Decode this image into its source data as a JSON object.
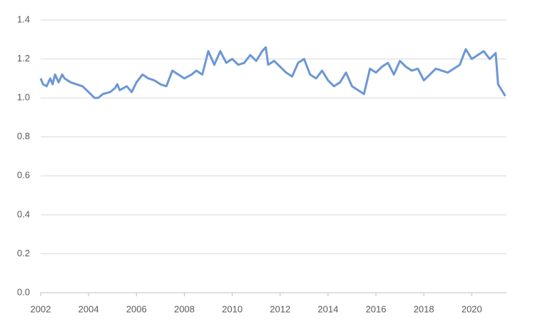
{
  "chart_data": {
    "type": "line",
    "x": [
      2002.0,
      2002.1,
      2002.25,
      2002.4,
      2002.5,
      2002.6,
      2002.75,
      2002.9,
      2003.0,
      2003.25,
      2003.5,
      2003.75,
      2004.0,
      2004.25,
      2004.4,
      2004.6,
      2004.9,
      2005.1,
      2005.2,
      2005.3,
      2005.6,
      2005.8,
      2006.0,
      2006.25,
      2006.5,
      2006.75,
      2007.0,
      2007.25,
      2007.5,
      2007.75,
      2008.0,
      2008.3,
      2008.5,
      2008.75,
      2009.0,
      2009.25,
      2009.5,
      2009.75,
      2010.0,
      2010.25,
      2010.5,
      2010.75,
      2011.0,
      2011.25,
      2011.4,
      2011.5,
      2011.75,
      2012.0,
      2012.25,
      2012.5,
      2012.75,
      2013.0,
      2013.25,
      2013.5,
      2013.75,
      2014.0,
      2014.25,
      2014.5,
      2014.75,
      2015.0,
      2015.25,
      2015.5,
      2015.75,
      2016.0,
      2016.25,
      2016.5,
      2016.75,
      2017.0,
      2017.25,
      2017.5,
      2017.75,
      2018.0,
      2018.25,
      2018.5,
      2018.75,
      2019.0,
      2019.25,
      2019.5,
      2019.75,
      2020.0,
      2020.25,
      2020.5,
      2020.75,
      2021.0,
      2021.1,
      2021.25,
      2021.4
    ],
    "series": [
      {
        "color": "#6b97d6",
        "values": [
          1.1,
          1.07,
          1.06,
          1.1,
          1.07,
          1.12,
          1.08,
          1.12,
          1.1,
          1.08,
          1.07,
          1.06,
          1.03,
          1.0,
          1.0,
          1.02,
          1.03,
          1.05,
          1.07,
          1.04,
          1.06,
          1.03,
          1.08,
          1.12,
          1.1,
          1.09,
          1.07,
          1.06,
          1.14,
          1.12,
          1.1,
          1.12,
          1.14,
          1.12,
          1.24,
          1.17,
          1.24,
          1.18,
          1.2,
          1.17,
          1.18,
          1.22,
          1.19,
          1.24,
          1.26,
          1.17,
          1.19,
          1.16,
          1.13,
          1.11,
          1.18,
          1.2,
          1.12,
          1.1,
          1.14,
          1.09,
          1.06,
          1.08,
          1.13,
          1.06,
          1.04,
          1.02,
          1.15,
          1.13,
          1.16,
          1.18,
          1.12,
          1.19,
          1.16,
          1.14,
          1.15,
          1.09,
          1.12,
          1.15,
          1.14,
          1.13,
          1.15,
          1.17,
          1.25,
          1.2,
          1.22,
          1.24,
          1.2,
          1.23,
          1.07,
          1.04,
          1.01
        ]
      }
    ],
    "xlim": [
      2002,
      2021.45
    ],
    "xticks": [
      2002,
      2004,
      2006,
      2008,
      2010,
      2012,
      2014,
      2016,
      2018,
      2020
    ],
    "ylim": [
      0,
      1.4
    ],
    "yticks": [
      {
        "value": 0,
        "label": "0.0"
      },
      0.2,
      0.4,
      0.6,
      0.8,
      {
        "value": 1,
        "label": "1.0"
      },
      1.2,
      1.4
    ],
    "grid": true
  }
}
